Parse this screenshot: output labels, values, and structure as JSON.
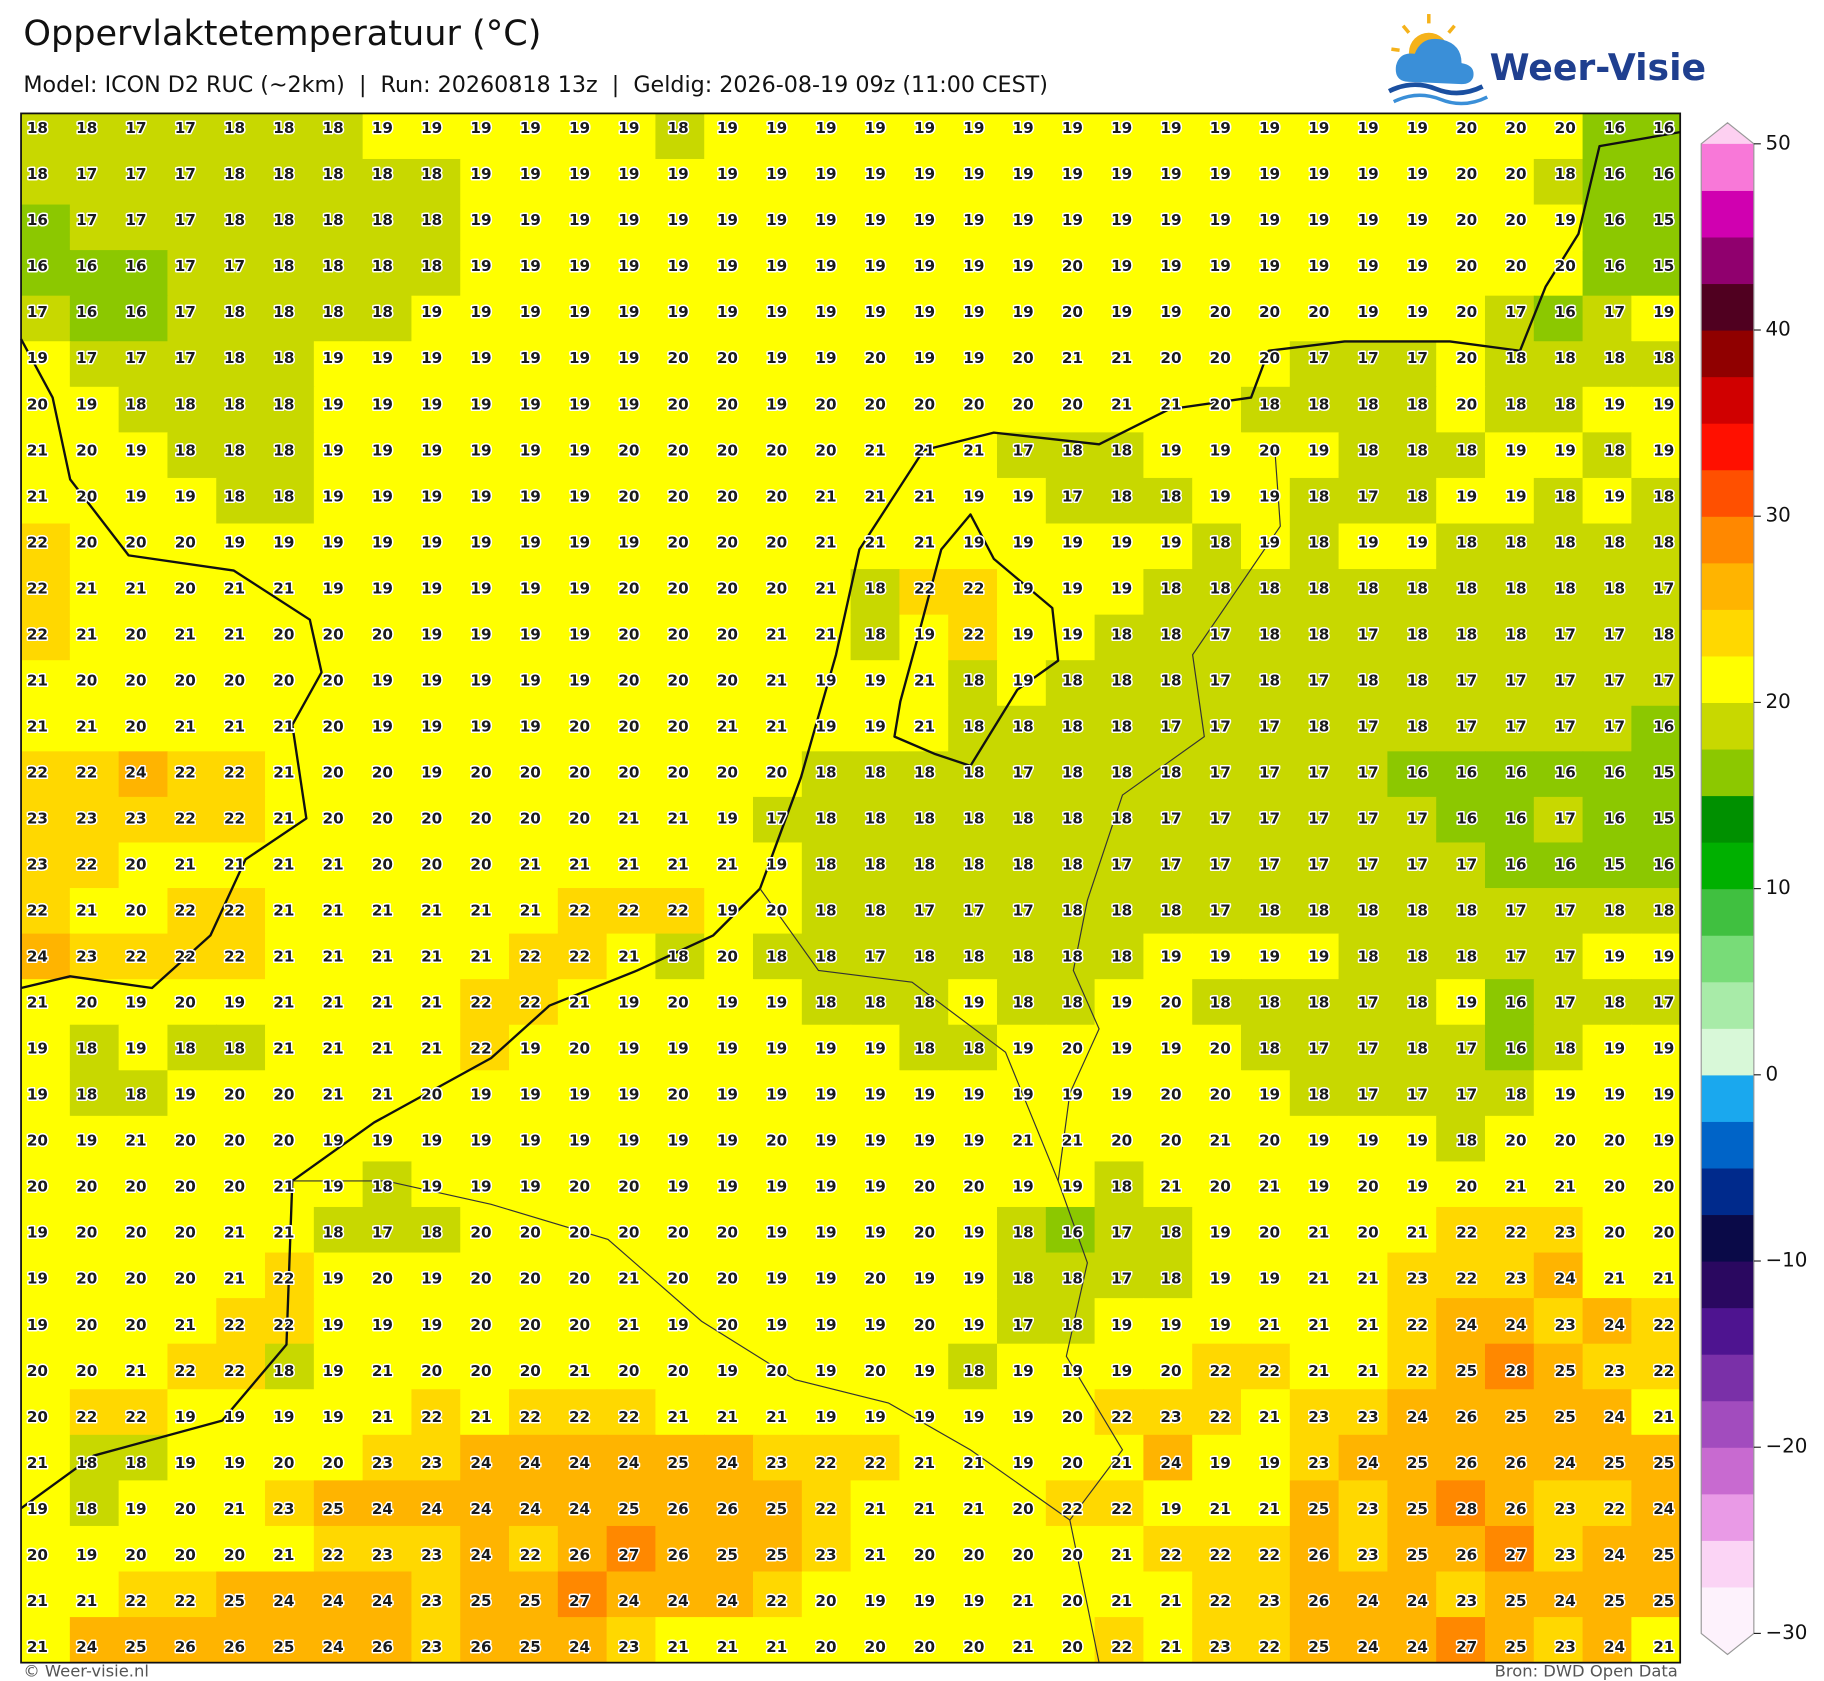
{
  "header": {
    "title": "Oppervlaktetemperatuur (°C)",
    "subtitle": "Model: ICON D2 RUC (~2km)  |  Run: 20260818 13z  |  Geldig: 2026-08-19 09z (11:00 CEST)",
    "logo": "Weer-Visie"
  },
  "map": {
    "rows": [
      [
        18,
        18,
        17,
        17,
        18,
        18,
        18,
        19,
        19,
        19,
        19,
        19,
        19,
        18,
        19,
        19,
        19,
        19,
        19,
        19,
        19,
        19,
        19,
        19,
        19,
        19,
        19,
        19,
        19,
        20,
        20,
        20,
        16,
        16
      ],
      [
        18,
        17,
        17,
        17,
        18,
        18,
        18,
        18,
        18,
        19,
        19,
        19,
        19,
        19,
        19,
        19,
        19,
        19,
        19,
        19,
        19,
        19,
        19,
        19,
        19,
        19,
        19,
        19,
        19,
        20,
        20,
        18,
        16,
        16
      ],
      [
        16,
        17,
        17,
        17,
        18,
        18,
        18,
        18,
        18,
        19,
        19,
        19,
        19,
        19,
        19,
        19,
        19,
        19,
        19,
        19,
        19,
        19,
        19,
        19,
        19,
        19,
        19,
        19,
        19,
        20,
        20,
        19,
        16,
        15
      ],
      [
        16,
        16,
        16,
        17,
        17,
        18,
        18,
        18,
        18,
        19,
        19,
        19,
        19,
        19,
        19,
        19,
        19,
        19,
        19,
        19,
        19,
        20,
        19,
        19,
        19,
        19,
        19,
        19,
        19,
        20,
        20,
        20,
        16,
        15
      ],
      [
        17,
        16,
        16,
        17,
        18,
        18,
        18,
        18,
        19,
        19,
        19,
        19,
        19,
        19,
        19,
        19,
        19,
        19,
        19,
        19,
        19,
        20,
        19,
        19,
        20,
        20,
        20,
        19,
        19,
        20,
        17,
        16,
        17,
        19
      ],
      [
        19,
        17,
        17,
        17,
        18,
        18,
        19,
        19,
        19,
        19,
        19,
        19,
        19,
        20,
        20,
        19,
        19,
        20,
        19,
        19,
        20,
        21,
        21,
        20,
        20,
        20,
        17,
        17,
        17,
        20,
        18,
        18,
        18,
        18
      ],
      [
        20,
        19,
        18,
        18,
        18,
        18,
        19,
        19,
        19,
        19,
        19,
        19,
        19,
        20,
        20,
        19,
        20,
        20,
        20,
        20,
        20,
        20,
        21,
        21,
        20,
        18,
        18,
        18,
        18,
        20,
        18,
        18,
        19,
        19
      ],
      [
        21,
        20,
        19,
        18,
        18,
        18,
        19,
        19,
        19,
        19,
        19,
        19,
        20,
        20,
        20,
        20,
        20,
        21,
        21,
        21,
        17,
        18,
        18,
        19,
        19,
        20,
        19,
        18,
        18,
        18,
        19,
        19,
        18,
        19
      ],
      [
        21,
        20,
        19,
        19,
        18,
        18,
        19,
        19,
        19,
        19,
        19,
        19,
        20,
        20,
        20,
        20,
        21,
        21,
        21,
        19,
        19,
        17,
        18,
        18,
        19,
        19,
        18,
        17,
        18,
        19,
        19,
        18,
        19,
        18
      ],
      [
        22,
        20,
        20,
        20,
        19,
        19,
        19,
        19,
        19,
        19,
        19,
        19,
        19,
        20,
        20,
        20,
        21,
        21,
        21,
        19,
        19,
        19,
        19,
        19,
        18,
        19,
        18,
        19,
        19,
        18,
        18,
        18,
        18,
        18
      ],
      [
        22,
        21,
        21,
        20,
        21,
        21,
        19,
        19,
        19,
        19,
        19,
        19,
        20,
        20,
        20,
        20,
        21,
        18,
        22,
        22,
        19,
        19,
        19,
        18,
        18,
        18,
        18,
        18,
        18,
        18,
        18,
        18,
        18,
        17
      ],
      [
        22,
        21,
        20,
        21,
        21,
        20,
        20,
        20,
        19,
        19,
        19,
        19,
        20,
        20,
        20,
        21,
        21,
        18,
        19,
        22,
        19,
        19,
        18,
        18,
        17,
        18,
        18,
        17,
        18,
        18,
        18,
        17,
        17,
        18
      ],
      [
        21,
        20,
        20,
        20,
        20,
        20,
        20,
        19,
        19,
        19,
        19,
        19,
        20,
        20,
        20,
        21,
        19,
        19,
        21,
        18,
        19,
        18,
        18,
        18,
        17,
        18,
        17,
        18,
        18,
        17,
        17,
        17,
        17,
        17
      ],
      [
        21,
        21,
        20,
        21,
        21,
        21,
        20,
        19,
        19,
        19,
        19,
        20,
        20,
        20,
        21,
        21,
        19,
        19,
        21,
        18,
        18,
        18,
        18,
        17,
        17,
        17,
        18,
        17,
        18,
        17,
        17,
        17,
        17,
        16
      ],
      [
        22,
        22,
        24,
        22,
        22,
        21,
        20,
        20,
        19,
        20,
        20,
        20,
        20,
        20,
        20,
        20,
        18,
        18,
        18,
        18,
        17,
        18,
        18,
        18,
        17,
        17,
        17,
        17,
        16,
        16,
        16,
        16,
        16,
        15
      ],
      [
        23,
        23,
        23,
        22,
        22,
        21,
        20,
        20,
        20,
        20,
        20,
        20,
        21,
        21,
        19,
        17,
        18,
        18,
        18,
        18,
        18,
        18,
        18,
        17,
        17,
        17,
        17,
        17,
        17,
        16,
        16,
        17,
        16,
        15
      ],
      [
        23,
        22,
        20,
        21,
        21,
        21,
        21,
        20,
        20,
        20,
        21,
        21,
        21,
        21,
        21,
        19,
        18,
        18,
        18,
        18,
        18,
        18,
        17,
        17,
        17,
        17,
        17,
        17,
        17,
        17,
        16,
        16,
        15,
        16
      ],
      [
        22,
        21,
        20,
        22,
        22,
        21,
        21,
        21,
        21,
        21,
        21,
        22,
        22,
        22,
        19,
        20,
        18,
        18,
        17,
        17,
        17,
        18,
        18,
        18,
        17,
        18,
        18,
        18,
        18,
        18,
        17,
        17,
        18,
        18
      ],
      [
        24,
        23,
        22,
        22,
        22,
        21,
        21,
        21,
        21,
        21,
        22,
        22,
        21,
        18,
        20,
        18,
        18,
        17,
        18,
        18,
        18,
        18,
        18,
        19,
        19,
        19,
        19,
        18,
        18,
        18,
        17,
        17,
        19,
        19
      ],
      [
        21,
        20,
        19,
        20,
        19,
        21,
        21,
        21,
        21,
        22,
        22,
        21,
        19,
        20,
        19,
        19,
        18,
        18,
        18,
        19,
        18,
        18,
        19,
        20,
        18,
        18,
        18,
        17,
        18,
        19,
        16,
        17,
        18,
        17
      ],
      [
        19,
        18,
        19,
        18,
        18,
        21,
        21,
        21,
        21,
        22,
        19,
        20,
        19,
        19,
        19,
        19,
        19,
        19,
        18,
        18,
        19,
        20,
        19,
        19,
        20,
        18,
        17,
        17,
        18,
        17,
        16,
        18,
        19,
        19
      ],
      [
        19,
        18,
        18,
        19,
        20,
        20,
        21,
        21,
        20,
        19,
        19,
        19,
        19,
        20,
        19,
        19,
        19,
        19,
        19,
        19,
        19,
        19,
        19,
        20,
        20,
        19,
        18,
        17,
        17,
        17,
        18,
        19,
        19,
        19
      ],
      [
        20,
        19,
        21,
        20,
        20,
        20,
        19,
        19,
        19,
        19,
        19,
        19,
        19,
        19,
        19,
        20,
        19,
        19,
        19,
        19,
        21,
        21,
        20,
        20,
        21,
        20,
        19,
        19,
        19,
        18,
        20,
        20,
        20,
        19
      ],
      [
        20,
        20,
        20,
        20,
        20,
        21,
        19,
        18,
        19,
        19,
        19,
        20,
        20,
        19,
        19,
        19,
        19,
        19,
        20,
        20,
        19,
        19,
        18,
        21,
        20,
        21,
        19,
        20,
        19,
        20,
        21,
        21,
        20,
        20
      ],
      [
        19,
        20,
        20,
        20,
        21,
        21,
        18,
        17,
        18,
        20,
        20,
        20,
        20,
        20,
        20,
        19,
        19,
        19,
        20,
        19,
        18,
        16,
        17,
        18,
        19,
        20,
        21,
        20,
        21,
        22,
        22,
        23,
        20,
        20
      ],
      [
        19,
        20,
        20,
        20,
        21,
        22,
        19,
        20,
        19,
        20,
        20,
        20,
        21,
        20,
        20,
        19,
        19,
        20,
        19,
        19,
        18,
        18,
        17,
        18,
        19,
        19,
        21,
        21,
        23,
        22,
        23,
        24,
        21,
        21
      ],
      [
        19,
        20,
        20,
        21,
        22,
        22,
        19,
        19,
        19,
        20,
        20,
        20,
        21,
        19,
        20,
        19,
        19,
        19,
        20,
        19,
        17,
        18,
        19,
        19,
        19,
        21,
        21,
        21,
        22,
        24,
        24,
        23,
        24,
        22
      ],
      [
        20,
        20,
        21,
        22,
        22,
        18,
        19,
        21,
        20,
        20,
        20,
        21,
        20,
        20,
        19,
        20,
        19,
        20,
        19,
        18,
        19,
        19,
        19,
        20,
        22,
        22,
        21,
        21,
        22,
        25,
        28,
        25,
        23,
        22
      ],
      [
        20,
        22,
        22,
        19,
        19,
        19,
        19,
        21,
        22,
        21,
        22,
        22,
        22,
        21,
        21,
        21,
        19,
        19,
        19,
        19,
        19,
        20,
        22,
        23,
        22,
        21,
        23,
        23,
        24,
        26,
        25,
        25,
        24,
        21
      ],
      [
        21,
        18,
        18,
        19,
        19,
        20,
        20,
        23,
        23,
        24,
        24,
        24,
        24,
        25,
        24,
        23,
        22,
        22,
        21,
        21,
        19,
        20,
        21,
        24,
        19,
        19,
        23,
        24,
        25,
        26,
        26,
        24,
        25,
        25
      ],
      [
        19,
        18,
        19,
        20,
        21,
        23,
        25,
        24,
        24,
        24,
        24,
        24,
        25,
        26,
        26,
        25,
        22,
        21,
        21,
        21,
        20,
        22,
        22,
        19,
        21,
        21,
        25,
        23,
        25,
        28,
        26,
        23,
        22,
        24
      ],
      [
        20,
        19,
        20,
        20,
        20,
        21,
        22,
        23,
        23,
        24,
        22,
        26,
        27,
        26,
        25,
        25,
        23,
        21,
        20,
        20,
        20,
        20,
        21,
        22,
        22,
        22,
        26,
        23,
        25,
        26,
        27,
        23,
        24,
        25
      ],
      [
        21,
        21,
        22,
        22,
        25,
        24,
        24,
        24,
        23,
        25,
        25,
        27,
        24,
        24,
        24,
        22,
        20,
        19,
        19,
        19,
        21,
        20,
        21,
        21,
        22,
        23,
        26,
        24,
        24,
        23,
        25,
        24,
        25,
        25
      ],
      [
        21,
        24,
        25,
        26,
        26,
        25,
        24,
        26,
        23,
        26,
        25,
        24,
        23,
        21,
        21,
        21,
        20,
        20,
        20,
        20,
        21,
        20,
        22,
        21,
        23,
        22,
        25,
        24,
        24,
        27,
        25,
        23,
        24,
        21
      ]
    ]
  },
  "colorbar": {
    "lim": [
      -30,
      50
    ],
    "ticks": [
      50,
      40,
      30,
      20,
      10,
      0,
      {
        "value": -10,
        "label": "−10"
      },
      {
        "value": -20,
        "label": "−20"
      },
      {
        "value": -30,
        "label": "−30"
      }
    ],
    "colors": [
      "#fdf2fc",
      "#fbd4f5",
      "#e99ae6",
      "#c86ad0",
      "#a24cbe",
      "#7a30a8",
      "#4e1490",
      "#2a0860",
      "#0a0a48",
      "#002a8c",
      "#0064c8",
      "#1aa8ee",
      "#d8f8d8",
      "#a8eba8",
      "#78dc78",
      "#40c040",
      "#00b000",
      "#009000",
      "#8cc800",
      "#c8d800",
      "#ffff00",
      "#ffd800",
      "#ffb400",
      "#ff8800",
      "#ff5000",
      "#ff1000",
      "#d00000",
      "#900000",
      "#500020",
      "#90006e",
      "#d000b0",
      "#f878d8"
    ]
  },
  "footer": {
    "left": "© Weer-visie.nl",
    "right": "Bron: DWD Open Data"
  }
}
